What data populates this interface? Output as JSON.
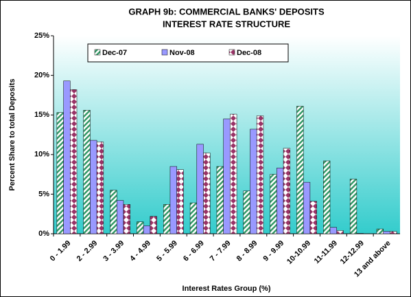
{
  "chart_data": {
    "type": "bar",
    "title": [
      "GRAPH 9b:  COMMERCIAL BANKS'  DEPOSITS",
      "INTEREST RATE STRUCTURE"
    ],
    "x_label": "Interest Rates Group (%)",
    "y_label": "Percent Share to total Deposits",
    "categories": [
      "0 - 1.99",
      "2 - 2.99",
      "3 - 3.99",
      "4 - 4.99",
      "5 - 5.99",
      "6 - 6.99",
      "7 - 7.99",
      "8 - 8.99",
      "9 - 9.99",
      "10-10.99",
      "11-11.99",
      "12-12.99",
      "13 and above"
    ],
    "series": [
      {
        "name": "Dec-07",
        "color": "#339966",
        "pattern": "stripes",
        "values": [
          15.3,
          15.6,
          5.5,
          1.5,
          3.7,
          3.9,
          8.5,
          5.4,
          7.5,
          16.1,
          9.2,
          6.9,
          0.6
        ]
      },
      {
        "name": "Nov-08",
        "color": "#9999ff",
        "pattern": "solid",
        "values": [
          19.3,
          11.8,
          4.2,
          1.0,
          8.5,
          11.3,
          14.5,
          13.2,
          8.3,
          6.5,
          0.8,
          0.05,
          0.3
        ]
      },
      {
        "name": "Dec-08",
        "color": "#993366",
        "pattern": "diamonds",
        "values": [
          18.2,
          11.6,
          3.7,
          2.2,
          8.1,
          10.2,
          15.1,
          14.9,
          10.8,
          4.1,
          0.4,
          0.0,
          0.3
        ]
      }
    ],
    "ylim": [
      0,
      25
    ],
    "yticks": [
      {
        "value": 0,
        "label": "0%"
      },
      {
        "value": 5,
        "label": "5%"
      },
      {
        "value": 10,
        "label": "10%"
      },
      {
        "value": 15,
        "label": "15%"
      },
      {
        "value": 20,
        "label": "20%"
      },
      {
        "value": 25,
        "label": "25%"
      }
    ],
    "legend": "top"
  }
}
